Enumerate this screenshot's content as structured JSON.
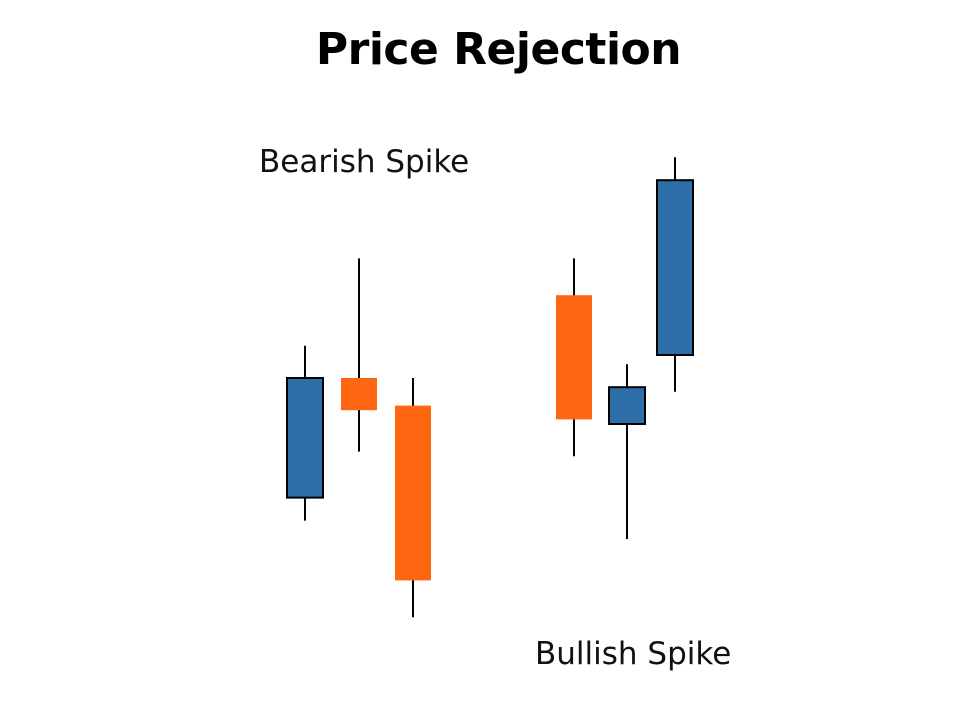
{
  "title": "Price Rejection",
  "captions": {
    "bearish": "Bearish Spike",
    "bullish": "Bullish Spike"
  },
  "colors": {
    "bullish_body": "#2E6FA8",
    "bearish_body": "#FF6611",
    "wick": "#000000",
    "outline": "#000000"
  },
  "chart_data": {
    "type": "candlestick",
    "y_direction": "price increases upward",
    "groups": [
      {
        "caption": "Bearish Spike",
        "candles": [
          {
            "direction": "bull",
            "open": 44,
            "close": 70,
            "high": 77,
            "low": 39
          },
          {
            "direction": "bear",
            "open": 70,
            "close": 63,
            "high": 96,
            "low": 54
          },
          {
            "direction": "bear",
            "open": 64,
            "close": 26,
            "high": 70,
            "low": 18
          }
        ]
      },
      {
        "caption": "Bullish Spike",
        "candles": [
          {
            "direction": "bear",
            "open": 88,
            "close": 61,
            "high": 96,
            "low": 53
          },
          {
            "direction": "bull",
            "open": 60,
            "close": 68,
            "high": 73,
            "low": 35
          },
          {
            "direction": "bull",
            "open": 75,
            "close": 113,
            "high": 118,
            "low": 67
          }
        ]
      }
    ]
  }
}
